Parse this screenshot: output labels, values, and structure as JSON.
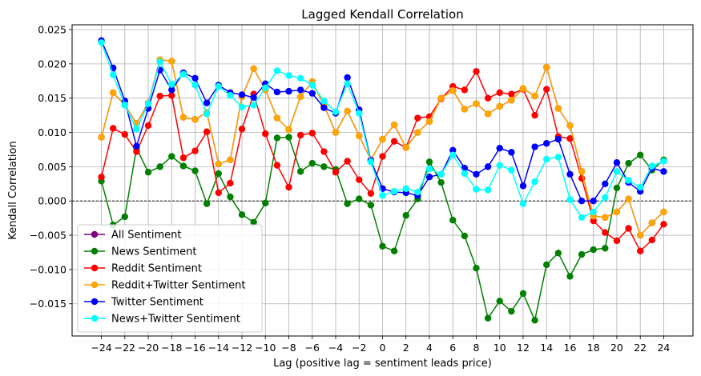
{
  "chart_data": {
    "type": "line",
    "title": "Lagged Kendall Correlation",
    "xlabel": "Lag (positive lag = sentiment leads price)",
    "ylabel": "Kendall Correlation",
    "xlim": [
      -26.5,
      26.5
    ],
    "ylim": [
      -0.0197,
      0.0257
    ],
    "xticks": [
      -24,
      -22,
      -20,
      -18,
      -16,
      -14,
      -12,
      -10,
      -8,
      -6,
      -4,
      -2,
      0,
      2,
      4,
      6,
      8,
      10,
      12,
      14,
      16,
      18,
      20,
      22,
      24
    ],
    "xtick_labels": [
      "−24",
      "−22",
      "−20",
      "−18",
      "−16",
      "−14",
      "−12",
      "−10",
      "−8",
      "−6",
      "−4",
      "−2",
      "0",
      "2",
      "4",
      "6",
      "8",
      "10",
      "12",
      "14",
      "16",
      "18",
      "20",
      "22",
      "24"
    ],
    "yticks": [
      -0.015,
      -0.01,
      -0.005,
      0.0,
      0.005,
      0.01,
      0.015,
      0.02,
      0.025
    ],
    "ytick_labels": [
      "−0.015",
      "−0.010",
      "−0.005",
      "0.000",
      "0.005",
      "0.010",
      "0.015",
      "0.020",
      "0.025"
    ],
    "grid": true,
    "zero_line": true,
    "legend_position": "lower-left",
    "x": [
      -24,
      -23,
      -22,
      -21,
      -20,
      -19,
      -18,
      -17,
      -16,
      -15,
      -14,
      -13,
      -12,
      -11,
      -10,
      -9,
      -8,
      -7,
      -6,
      -5,
      -4,
      -3,
      -2,
      -1,
      0,
      1,
      2,
      3,
      4,
      5,
      6,
      7,
      8,
      9,
      10,
      11,
      12,
      13,
      14,
      15,
      16,
      17,
      18,
      19,
      20,
      21,
      22,
      23,
      24
    ],
    "series": [
      {
        "name": "All Sentiment",
        "color": "#800080",
        "values": [
          0.0093,
          0.0158,
          0.014,
          0.0113,
          0.0143,
          0.0206,
          0.0204,
          0.0122,
          0.0119,
          0.0129,
          0.0054,
          0.006,
          0.0152,
          0.0193,
          0.0162,
          0.0121,
          0.0104,
          0.0152,
          0.0174,
          0.0139,
          0.01,
          0.0131,
          0.0095,
          0.006,
          0.009,
          0.0111,
          0.0078,
          0.01,
          0.0116,
          0.015,
          0.0161,
          0.0134,
          0.0142,
          0.0127,
          0.0138,
          0.0147,
          0.0164,
          0.0153,
          0.0195,
          0.0135,
          0.011,
          0.0043,
          -0.0022,
          -0.0024,
          -0.0016,
          0.0003,
          -0.005,
          -0.0032,
          -0.0016
        ]
      },
      {
        "name": "News Sentiment",
        "color": "#008000",
        "values": [
          0.0029,
          -0.0035,
          -0.0023,
          0.0077,
          0.0042,
          0.005,
          0.0065,
          0.0051,
          0.0044,
          -0.0004,
          0.004,
          0.0006,
          -0.002,
          -0.0031,
          -0.0003,
          0.0092,
          0.0093,
          0.0043,
          0.0055,
          0.005,
          0.0046,
          -0.0004,
          0.0003,
          -0.0006,
          -0.0066,
          -0.0073,
          -0.0021,
          0.0003,
          0.0057,
          0.0027,
          -0.0028,
          -0.0051,
          -0.0098,
          -0.0171,
          -0.0146,
          -0.0161,
          -0.0135,
          -0.0174,
          -0.0093,
          -0.0076,
          -0.011,
          -0.0078,
          -0.0071,
          -0.0069,
          0.0019,
          0.0055,
          0.0067,
          0.0045,
          0.006
        ]
      },
      {
        "name": "Reddit Sentiment",
        "color": "#ff0000",
        "values": [
          0.0035,
          0.0106,
          0.0097,
          0.0072,
          0.011,
          0.0153,
          0.0154,
          0.0063,
          0.0073,
          0.0101,
          0.0012,
          0.0026,
          0.0105,
          0.0156,
          0.0098,
          0.0052,
          0.002,
          0.0096,
          0.0099,
          0.0072,
          0.0042,
          0.0058,
          0.0031,
          0.0011,
          0.0065,
          0.0087,
          0.0078,
          0.0121,
          0.0123,
          0.0149,
          0.0167,
          0.0162,
          0.0189,
          0.015,
          0.0158,
          0.0156,
          0.0163,
          0.0125,
          0.0163,
          0.0094,
          0.0091,
          0.0033,
          -0.0029,
          -0.0046,
          -0.0058,
          -0.004,
          -0.0073,
          -0.0057,
          -0.0034
        ]
      },
      {
        "name": "Reddit+Twitter Sentiment",
        "color": "#ffa500",
        "values": [
          0.0093,
          0.0158,
          0.014,
          0.0113,
          0.0143,
          0.0206,
          0.0204,
          0.0122,
          0.0119,
          0.0129,
          0.0054,
          0.006,
          0.0152,
          0.0193,
          0.0162,
          0.0121,
          0.0104,
          0.0152,
          0.0174,
          0.0139,
          0.01,
          0.0131,
          0.0095,
          0.006,
          0.009,
          0.0111,
          0.0078,
          0.01,
          0.0116,
          0.015,
          0.0161,
          0.0134,
          0.0142,
          0.0127,
          0.0138,
          0.0147,
          0.0164,
          0.0153,
          0.0195,
          0.0135,
          0.011,
          0.0043,
          -0.0022,
          -0.0024,
          -0.0016,
          0.0003,
          -0.005,
          -0.0032,
          -0.0016
        ]
      },
      {
        "name": "Twitter Sentiment",
        "color": "#0000ff",
        "values": [
          0.0234,
          0.0194,
          0.0146,
          0.008,
          0.0135,
          0.0191,
          0.0162,
          0.0187,
          0.0179,
          0.0143,
          0.0169,
          0.0158,
          0.0155,
          0.0151,
          0.0171,
          0.0159,
          0.016,
          0.0162,
          0.0157,
          0.0136,
          0.0128,
          0.018,
          0.0133,
          0.0059,
          0.0018,
          0.0013,
          0.0012,
          0.0008,
          0.0035,
          0.0039,
          0.0074,
          0.0048,
          0.0039,
          0.005,
          0.0077,
          0.0071,
          0.0022,
          0.0079,
          0.0084,
          0.009,
          0.0039,
          0.0,
          0.0,
          0.0025,
          0.0056,
          0.0027,
          0.0014,
          0.0048,
          0.0043
        ]
      },
      {
        "name": "News+Twitter Sentiment",
        "color": "#00ffff",
        "values": [
          0.0231,
          0.0184,
          0.014,
          0.0105,
          0.0142,
          0.0203,
          0.017,
          0.0185,
          0.0169,
          0.0127,
          0.0167,
          0.0154,
          0.0137,
          0.014,
          0.0165,
          0.019,
          0.0183,
          0.0179,
          0.0169,
          0.0146,
          0.013,
          0.0171,
          0.0128,
          0.0057,
          0.0008,
          0.0014,
          0.0018,
          0.0013,
          0.0047,
          0.0039,
          0.0067,
          0.004,
          0.0017,
          0.0016,
          0.0052,
          0.0045,
          -0.0004,
          0.0028,
          0.0061,
          0.0064,
          0.0002,
          -0.0024,
          -0.0016,
          0.0005,
          0.0043,
          0.003,
          0.002,
          0.0051,
          0.0058
        ]
      }
    ]
  }
}
